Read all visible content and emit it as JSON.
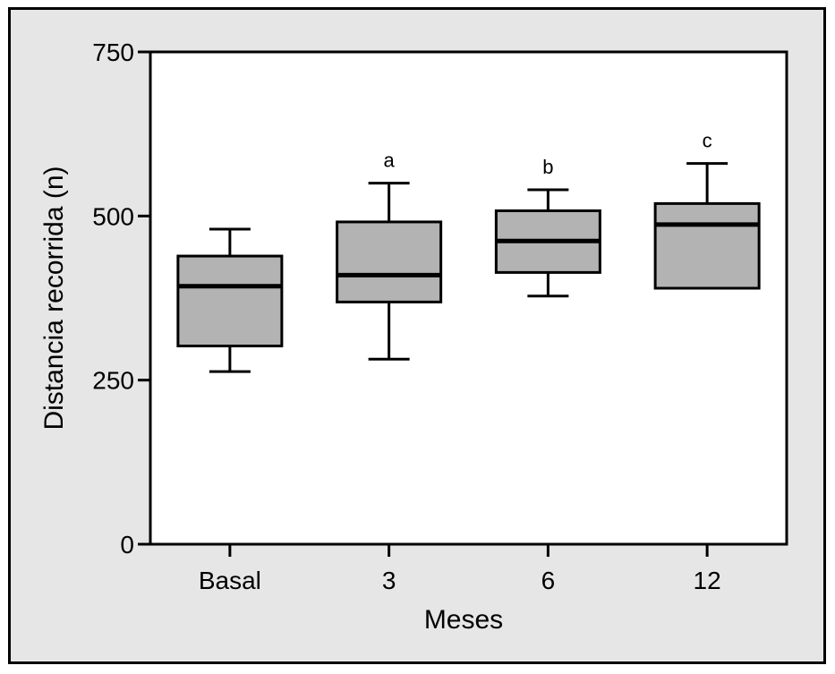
{
  "chart_data": {
    "type": "box",
    "xlabel": "Meses",
    "ylabel": "Distancia recorrida (n)",
    "ylim": [
      0,
      750
    ],
    "yticks": [
      "0",
      "250",
      "500",
      "750"
    ],
    "categories": [
      "Basal",
      "3",
      "6",
      "12"
    ],
    "boxes": [
      {
        "category": "Basal",
        "min": 263,
        "q1": 302,
        "median": 393,
        "q3": 439,
        "max": 480,
        "annotation": ""
      },
      {
        "category": "3",
        "min": 282,
        "q1": 369,
        "median": 410,
        "q3": 491,
        "max": 550,
        "annotation": "a"
      },
      {
        "category": "6",
        "min": 378,
        "q1": 414,
        "median": 462,
        "q3": 508,
        "max": 540,
        "annotation": "b"
      },
      {
        "category": "12",
        "min": 390,
        "q1": 390,
        "median": 487,
        "q3": 519,
        "max": 580,
        "annotation": "c"
      }
    ],
    "colors": {
      "box_fill": "#b3b3b3",
      "background": "#e6e6e6",
      "plot_area": "#ffffff"
    },
    "grid": false,
    "legend": "none"
  }
}
